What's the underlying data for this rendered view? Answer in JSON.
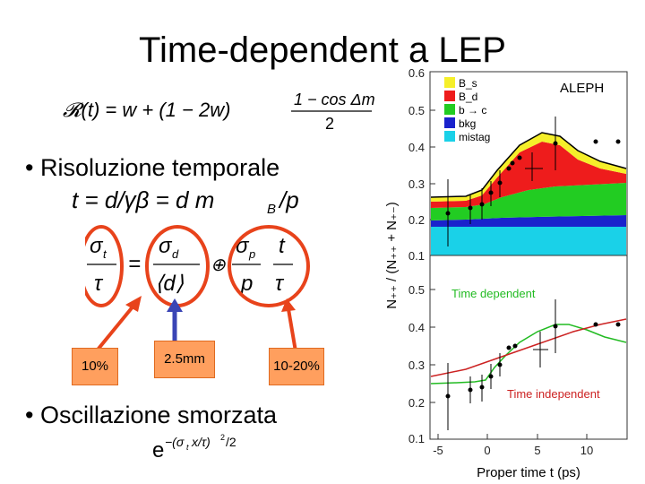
{
  "slide": {
    "title": "Time-dependent a LEP",
    "formula_R": "𝓡(t) = w + (1 − 2w) · (1 − cos Δm_d t) / 2",
    "bullets": [
      "Risoluzione temporale",
      "Oscillazione smorzata"
    ],
    "formula_t": "t = d/γβ = d m_B / p",
    "formula_sigma": "σ_t/τ = σ_d/⟨d⟩ ⊕ σ_p/p · t/τ",
    "formula_damping": "e^{-(σ_t x/τ)^2/2}",
    "labels": [
      "10%",
      "2.5mm",
      "10-20%"
    ],
    "colors": {
      "callout_fill": "#ff9f5e",
      "circle": "#e8431b",
      "arrow_blue": "#3a45b5"
    }
  },
  "figure": {
    "ylabel": "N₊₊ / (N₊₊ + N₊₋)",
    "xlabel": "Proper time  t  (ps)",
    "top_panel": {
      "tag": "ALEPH",
      "legend": [
        "B_s",
        "B_d",
        "b → c",
        "bkg",
        "mistag"
      ],
      "legend_colors": [
        "#f5ef2a",
        "#ee1c1c",
        "#22cc22",
        "#1a22cc",
        "#1ad1e8"
      ],
      "yticks": [
        "0.6",
        "0.5",
        "0.4",
        "0.3",
        "0.2",
        "0.1"
      ]
    },
    "bottom_panel": {
      "curve_labels": [
        "Time dependent",
        "Time independent"
      ],
      "curve_colors": [
        "#22bb22",
        "#cc2222"
      ],
      "yticks": [
        "0.5",
        "0.4",
        "0.3",
        "0.2",
        "0.1"
      ],
      "xticks": [
        "-5",
        "0",
        "5",
        "10"
      ]
    }
  }
}
